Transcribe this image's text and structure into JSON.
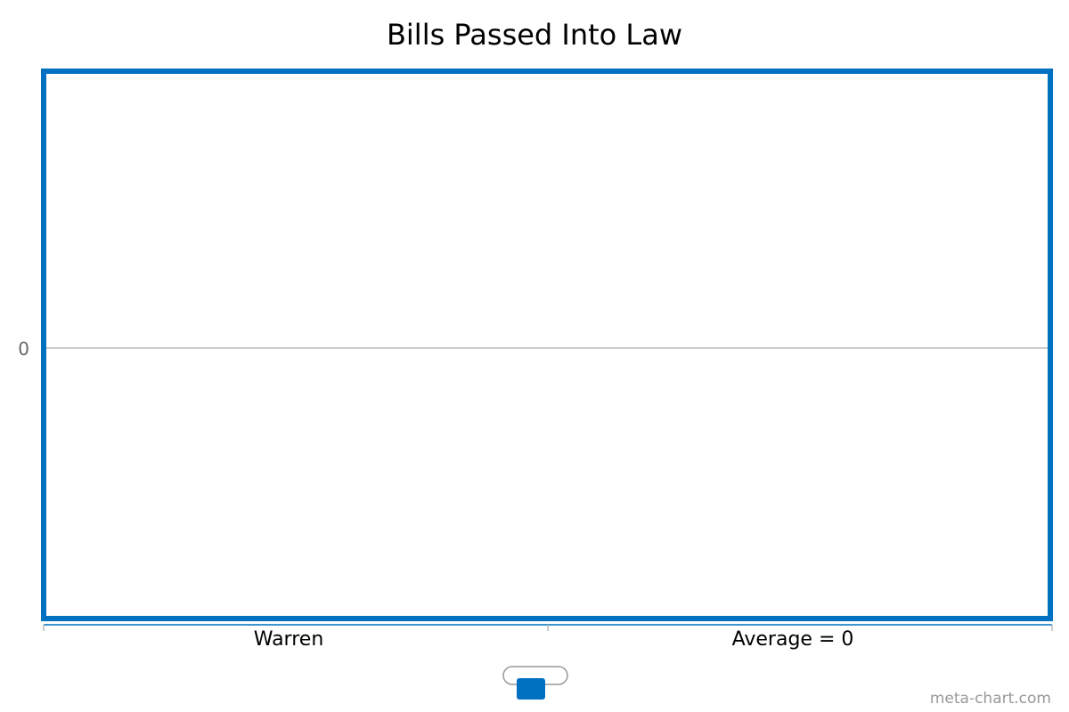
{
  "chart_data": {
    "type": "bar",
    "title": "Bills Passed Into Law",
    "xlabel": "",
    "ylabel": "",
    "categories": [
      "Warren",
      "Average = 0"
    ],
    "series": [
      {
        "values": [
          0,
          0
        ],
        "color": "#0070c0"
      }
    ],
    "y_ticks": [
      0
    ],
    "grid": true,
    "legend": "bottom-center",
    "colors": {
      "frame": "#0070c0",
      "gridline": "#bbbbbb",
      "legend_swatch": "#0070c0"
    }
  },
  "credit": "meta-chart.com"
}
